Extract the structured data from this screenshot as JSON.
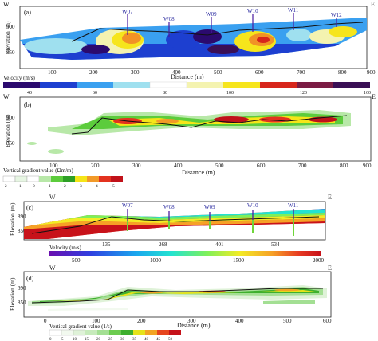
{
  "panel_a": {
    "label": "(a)",
    "corner_w": "W",
    "corner_e": "E",
    "ylabel": "Elevation (m)",
    "xlabel": "Distance (m)",
    "yticks": [
      "900",
      "850"
    ],
    "xticks": [
      "100",
      "200",
      "300",
      "400",
      "500",
      "600",
      "700",
      "800",
      "900"
    ],
    "wells": [
      "W07",
      "W08",
      "W09",
      "W10",
      "W11",
      "W12"
    ],
    "colorbar_label": "Velocity (m/s)",
    "colorbar_ticks": [
      "40",
      "60",
      "80",
      "100",
      "120",
      "160"
    ],
    "colors": [
      "#2b0a6e",
      "#1d3fd0",
      "#3aa0f0",
      "#9fe0ef",
      "#f4f3b0",
      "#f6e51c",
      "#f19226",
      "#d7261c",
      "#7b1c44",
      "#3a0f55"
    ]
  },
  "panel_b": {
    "label": "(b)",
    "corner_w": "W",
    "corner_e": "E",
    "ylabel": "Elevation (m)",
    "xlabel": "Distance (m)",
    "yticks": [
      "900",
      "850"
    ],
    "xticks": [
      "100",
      "200",
      "300",
      "400",
      "500",
      "600",
      "700",
      "800",
      "900"
    ],
    "colorbar_label": "Vertical gradient value (Ωm/m)",
    "colorbar_ticks": [
      "-2",
      "-1",
      "0",
      "1",
      "2",
      "3",
      "4",
      "5"
    ],
    "colors": [
      "#ffffff",
      "#e7f6e3",
      "#b8e8a8",
      "#5ccc3c",
      "#2e9f26",
      "#f5e518",
      "#f29a28",
      "#e3321f",
      "#c1121a"
    ]
  },
  "panel_c": {
    "label": "(c)",
    "corner_w": "W",
    "corner_e": "E",
    "ylabel": "Elevation (m)",
    "yticks": [
      "890",
      "850"
    ],
    "xticks": [
      "135",
      "268",
      "401",
      "534"
    ],
    "wells": [
      "W07",
      "W08",
      "W09",
      "W10",
      "W11"
    ],
    "colorbar_label": "Velocity (m/s)",
    "colorbar_ticks": [
      "500",
      "1000",
      "1500",
      "2000"
    ],
    "colors": [
      "#6a0fb0",
      "#2f3fe0",
      "#1aa7ee",
      "#23e3d0",
      "#7df05a",
      "#f2ec25",
      "#f6a126",
      "#e73b22",
      "#c8121a"
    ]
  },
  "panel_d": {
    "label": "(d)",
    "corner_w": "W",
    "corner_e": "E",
    "ylabel": "Elevation (m)",
    "xlabel": "Distance (m)",
    "yticks": [
      "890",
      "850"
    ],
    "xticks": [
      "0",
      "100",
      "200",
      "300",
      "400",
      "500",
      "600"
    ],
    "colorbar_label": "Vertical gradient value (1/s)",
    "colorbar_ticks": [
      "0",
      "5",
      "10",
      "15",
      "20",
      "25",
      "30",
      "35",
      "40",
      "45",
      "50"
    ],
    "colors": [
      "#ffffff",
      "#f2f9ef",
      "#dff2d8",
      "#c6eabb",
      "#a3df93",
      "#6ccb4f",
      "#3eaf2e",
      "#e5e31a",
      "#f2a423",
      "#e6451e",
      "#c5121a"
    ]
  }
}
